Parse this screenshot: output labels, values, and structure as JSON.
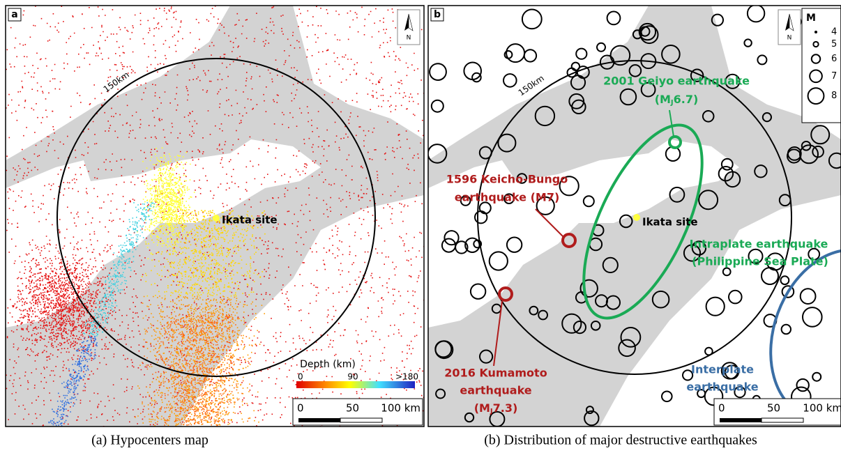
{
  "panel_a": {
    "label": "a",
    "north": "N",
    "radius_label": "150km",
    "site": "Ikata site",
    "depth_title": "Depth (km)",
    "depth_ticks": [
      "0",
      "90",
      ">180"
    ],
    "scale_ticks": [
      "0",
      "50",
      "100 km"
    ],
    "caption": "(a) Hypocenters map"
  },
  "panel_b": {
    "label": "b",
    "north": "N",
    "radius_label": "150km",
    "site": "Ikata site",
    "legend": {
      "title": "M",
      "magnitudes": [
        4,
        5,
        6,
        7,
        8
      ]
    },
    "geiyo": {
      "line1": "2001 Geiyo earthquake",
      "line2": {
        "prefix": "(M",
        "sub": "J",
        "suffix": "6.7)"
      }
    },
    "keicho": {
      "line1": "1596 Keicho-Bungo",
      "line2": "earthquake (M7)"
    },
    "intraplate": {
      "line1": "Intraplate earthquake",
      "line2": "(Philippine Sea Plate)"
    },
    "kumamoto": {
      "line1": "2016 Kumamoto",
      "line2": "earthquake",
      "line3": {
        "prefix": "(M",
        "sub": "J",
        "suffix": "7.3)"
      }
    },
    "interplate": {
      "line1": "Interplate",
      "line2": "earthquake"
    },
    "scale_ticks": [
      "0",
      "50",
      "100 km"
    ],
    "caption": "(b) Distribution of major destructive earthquakes"
  }
}
